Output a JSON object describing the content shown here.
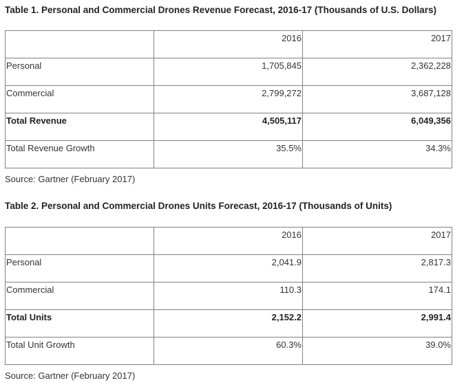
{
  "tables": [
    {
      "title": "Table 1. Personal and Commercial Drones Revenue Forecast, 2016-17 (Thousands of U.S. Dollars)",
      "header": [
        "",
        "2016",
        "2017"
      ],
      "rows": [
        [
          "Personal",
          "1,705,845",
          "2,362,228"
        ],
        [
          "Commercial",
          "2,799,272",
          "3,687,128"
        ],
        [
          "Total Revenue",
          "4,505,117",
          "6,049,356"
        ],
        [
          "Total Revenue Growth",
          "35.5%",
          "34.3%"
        ]
      ],
      "source": "Source: Gartner (February 2017)"
    },
    {
      "title": "Table 2. Personal and Commercial Drones Units Forecast, 2016-17 (Thousands of Units)",
      "header": [
        "",
        "2016",
        "2017"
      ],
      "rows": [
        [
          "Personal",
          "2,041.9",
          "2,817.3"
        ],
        [
          "Commercial",
          "110.3",
          "174.1"
        ],
        [
          "Total Units",
          "2,152.2",
          "2,991.4"
        ],
        [
          "Total Unit Growth",
          "60.3%",
          "39.0%"
        ]
      ],
      "source": "Source: Gartner (February 2017)"
    }
  ]
}
